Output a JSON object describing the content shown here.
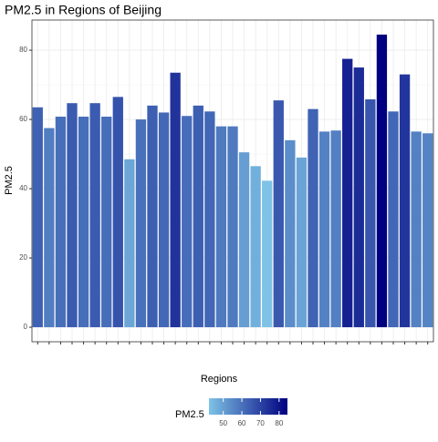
{
  "chart_data": {
    "type": "bar",
    "title": "PM2.5 in Regions of Beijing",
    "x_label": "Regions",
    "y_label": "PM2.5",
    "categories": [
      null,
      null,
      null,
      null,
      null,
      null,
      null,
      null,
      null,
      null,
      null,
      null,
      null,
      null,
      null,
      null,
      null,
      null,
      null,
      null,
      null,
      null,
      null,
      null,
      null,
      null,
      null,
      null,
      null,
      null,
      null,
      null,
      null,
      null,
      null
    ],
    "values": [
      63.5,
      57.5,
      60.8,
      64.7,
      60.8,
      64.7,
      60.8,
      66.5,
      48.5,
      60,
      64,
      62,
      73.5,
      61,
      64,
      62.3,
      58,
      58,
      50.5,
      46.5,
      42.3,
      65.5,
      54,
      49,
      63,
      56.5,
      56.8,
      77.5,
      75,
      65.8,
      84.5,
      62.3,
      73,
      56.5,
      56
    ],
    "ylim": [
      -4.2,
      88.7
    ],
    "yticks": [
      0,
      20,
      40,
      60,
      80
    ],
    "grid": true,
    "color_scale": {
      "low": "#7ec3e6",
      "high": "#000080"
    },
    "legend": {
      "title": "PM2.5",
      "ticks": [
        50,
        60,
        70,
        80
      ],
      "position": "bottom"
    }
  }
}
